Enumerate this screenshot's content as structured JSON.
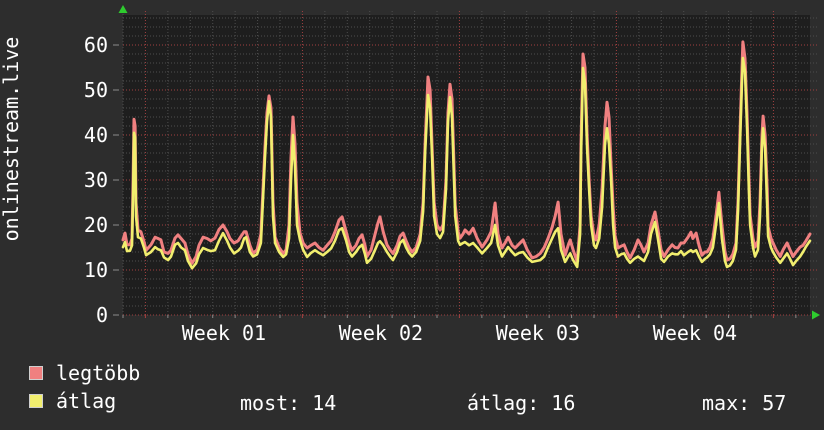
{
  "vertical_title": "onlinestream.live",
  "colors": {
    "page_bg": "#2d2d2d",
    "plot_bg": "#1e1e1e",
    "grid_minor": "#4d4d4d",
    "grid_major_red": "#a14040",
    "axis_tick": "#8a8a8a",
    "axis_arrow_green": "#2ecc2e",
    "text": "#ffffff",
    "legtobb_line": "#f08080",
    "atlag_line": "#f1ee6e",
    "swatch_border": "#cfcfcf"
  },
  "legend": {
    "items": [
      {
        "label": "legtöbb",
        "color": "#f08080"
      },
      {
        "label": "átlag",
        "color": "#f1ee6e"
      }
    ]
  },
  "stats": {
    "most": {
      "label": "most:",
      "value": 14,
      "text": "most: 14"
    },
    "atlag": {
      "label": "átlag:",
      "value": 16,
      "text": "átlag: 16"
    },
    "max": {
      "label": "max:",
      "value": 57,
      "text": "max: 57"
    }
  },
  "chart_data": {
    "type": "line",
    "title": "onlinestream.live",
    "xlabel": "",
    "ylabel": "",
    "grid": true,
    "legend_position": "bottom-left",
    "x_unit": "days",
    "x_range_days": [
      0,
      30.63
    ],
    "ylim": [
      0,
      66.667
    ],
    "y_ticks": [
      0,
      10,
      20,
      30,
      40,
      50,
      60
    ],
    "y_minor_step": 2,
    "x_day_grid_step": 1,
    "x_week_gridlines_days": [
      1,
      8,
      15,
      22,
      29
    ],
    "x_tick_labels": [
      {
        "label": "Week 01",
        "day": 4.5
      },
      {
        "label": "Week 02",
        "day": 11.5
      },
      {
        "label": "Week 03",
        "day": 18.5
      },
      {
        "label": "Week 04",
        "day": 25.5
      }
    ],
    "series_names": [
      "legtöbb",
      "átlag"
    ],
    "points_format": [
      "day",
      "legtöbb",
      "átlag"
    ],
    "points": [
      [
        0.0,
        16.7,
        15.1
      ],
      [
        0.09,
        18.2,
        16.2
      ],
      [
        0.18,
        15.6,
        14.2
      ],
      [
        0.31,
        15.6,
        14.3
      ],
      [
        0.4,
        17.0,
        15.5
      ],
      [
        0.45,
        30.0,
        27.0
      ],
      [
        0.49,
        43.5,
        40.5
      ],
      [
        0.54,
        42.0,
        39.5
      ],
      [
        0.58,
        25.0,
        22.0
      ],
      [
        0.67,
        18.9,
        17.3
      ],
      [
        0.8,
        18.5,
        17.0
      ],
      [
        0.94,
        16.2,
        14.9
      ],
      [
        1.03,
        14.4,
        13.3
      ],
      [
        1.25,
        15.6,
        14.0
      ],
      [
        1.43,
        17.3,
        15.1
      ],
      [
        1.56,
        17.0,
        14.6
      ],
      [
        1.69,
        16.7,
        14.4
      ],
      [
        1.83,
        14.0,
        12.8
      ],
      [
        2.01,
        13.7,
        12.2
      ],
      [
        2.14,
        14.4,
        13.0
      ],
      [
        2.32,
        17.1,
        15.6
      ],
      [
        2.45,
        17.8,
        16.0
      ],
      [
        2.59,
        17.0,
        15.0
      ],
      [
        2.76,
        16.0,
        14.4
      ],
      [
        2.9,
        13.5,
        12.0
      ],
      [
        3.08,
        11.5,
        10.4
      ],
      [
        3.26,
        13.0,
        11.5
      ],
      [
        3.39,
        15.5,
        13.5
      ],
      [
        3.57,
        17.3,
        14.9
      ],
      [
        3.75,
        17.0,
        14.5
      ],
      [
        3.92,
        16.5,
        14.2
      ],
      [
        4.1,
        17.1,
        14.4
      ],
      [
        4.28,
        19.0,
        16.5
      ],
      [
        4.46,
        20.0,
        18.2
      ],
      [
        4.64,
        18.5,
        16.5
      ],
      [
        4.77,
        17.0,
        15.0
      ],
      [
        4.95,
        16.0,
        13.7
      ],
      [
        5.13,
        16.5,
        14.3
      ],
      [
        5.26,
        17.5,
        15.0
      ],
      [
        5.4,
        18.5,
        17.0
      ],
      [
        5.49,
        18.5,
        17.3
      ],
      [
        5.66,
        15.5,
        14.0
      ],
      [
        5.8,
        13.7,
        13.0
      ],
      [
        5.98,
        14.5,
        13.5
      ],
      [
        6.15,
        18.0,
        16.0
      ],
      [
        6.33,
        37.3,
        35.1
      ],
      [
        6.42,
        45.0,
        43.0
      ],
      [
        6.51,
        48.7,
        47.5
      ],
      [
        6.6,
        46.0,
        44.0
      ],
      [
        6.69,
        25.0,
        22.0
      ],
      [
        6.78,
        17.3,
        16.0
      ],
      [
        6.96,
        15.0,
        14.0
      ],
      [
        7.14,
        13.7,
        12.9
      ],
      [
        7.27,
        14.5,
        13.5
      ],
      [
        7.4,
        20.0,
        17.0
      ],
      [
        7.49,
        35.0,
        30.0
      ],
      [
        7.58,
        44.0,
        40.0
      ],
      [
        7.67,
        38.0,
        33.0
      ],
      [
        7.76,
        25.0,
        20.0
      ],
      [
        7.89,
        18.2,
        16.7
      ],
      [
        8.03,
        16.0,
        14.5
      ],
      [
        8.21,
        14.9,
        12.9
      ],
      [
        8.38,
        15.5,
        13.8
      ],
      [
        8.56,
        16.0,
        14.4
      ],
      [
        8.74,
        15.0,
        13.8
      ],
      [
        8.92,
        14.4,
        13.3
      ],
      [
        9.1,
        15.5,
        14.0
      ],
      [
        9.28,
        16.5,
        14.8
      ],
      [
        9.45,
        18.5,
        16.5
      ],
      [
        9.63,
        21.1,
        18.9
      ],
      [
        9.77,
        21.8,
        19.3
      ],
      [
        9.95,
        18.5,
        16.5
      ],
      [
        10.08,
        16.0,
        14.0
      ],
      [
        10.21,
        14.4,
        13.0
      ],
      [
        10.39,
        15.5,
        14.0
      ],
      [
        10.52,
        17.0,
        15.0
      ],
      [
        10.66,
        17.8,
        15.6
      ],
      [
        10.79,
        15.5,
        13.5
      ],
      [
        10.88,
        13.0,
        11.6
      ],
      [
        11.06,
        14.5,
        12.5
      ],
      [
        11.24,
        18.0,
        14.5
      ],
      [
        11.37,
        20.5,
        16.0
      ],
      [
        11.46,
        21.8,
        16.4
      ],
      [
        11.6,
        18.5,
        15.5
      ],
      [
        11.77,
        15.6,
        14.0
      ],
      [
        11.91,
        14.5,
        13.0
      ],
      [
        12.04,
        13.7,
        12.2
      ],
      [
        12.22,
        15.5,
        14.0
      ],
      [
        12.35,
        17.5,
        16.0
      ],
      [
        12.49,
        18.2,
        16.7
      ],
      [
        12.62,
        16.5,
        15.0
      ],
      [
        12.75,
        15.0,
        13.8
      ],
      [
        12.89,
        14.0,
        13.0
      ],
      [
        13.07,
        15.0,
        14.0
      ],
      [
        13.25,
        18.0,
        16.5
      ],
      [
        13.38,
        25.0,
        23.0
      ],
      [
        13.47,
        38.0,
        36.0
      ],
      [
        13.6,
        52.9,
        48.9
      ],
      [
        13.69,
        50.0,
        46.0
      ],
      [
        13.78,
        37.3,
        35.0
      ],
      [
        13.87,
        25.0,
        22.0
      ],
      [
        14.0,
        20.0,
        18.0
      ],
      [
        14.14,
        18.9,
        17.1
      ],
      [
        14.27,
        20.0,
        18.5
      ],
      [
        14.4,
        30.0,
        28.0
      ],
      [
        14.49,
        45.0,
        43.0
      ],
      [
        14.58,
        51.3,
        48.4
      ],
      [
        14.67,
        48.0,
        44.0
      ],
      [
        14.81,
        24.4,
        22.0
      ],
      [
        14.94,
        18.5,
        16.5
      ],
      [
        15.03,
        17.1,
        15.6
      ],
      [
        15.16,
        18.0,
        16.0
      ],
      [
        15.25,
        18.9,
        16.2
      ],
      [
        15.43,
        18.0,
        15.5
      ],
      [
        15.61,
        19.3,
        16.0
      ],
      [
        15.79,
        17.0,
        15.0
      ],
      [
        16.01,
        15.1,
        13.7
      ],
      [
        16.23,
        16.7,
        14.9
      ],
      [
        16.41,
        18.5,
        16.0
      ],
      [
        16.59,
        24.9,
        20.0
      ],
      [
        16.72,
        18.0,
        15.5
      ],
      [
        16.9,
        14.9,
        13.0
      ],
      [
        17.03,
        16.0,
        14.0
      ],
      [
        17.17,
        17.3,
        15.1
      ],
      [
        17.35,
        15.5,
        14.0
      ],
      [
        17.48,
        14.9,
        13.3
      ],
      [
        17.66,
        15.8,
        13.8
      ],
      [
        17.84,
        16.7,
        14.0
      ],
      [
        18.02,
        14.5,
        12.8
      ],
      [
        18.24,
        12.7,
        11.8
      ],
      [
        18.42,
        13.0,
        12.0
      ],
      [
        18.6,
        13.7,
        12.2
      ],
      [
        18.78,
        15.0,
        13.0
      ],
      [
        18.95,
        17.0,
        15.0
      ],
      [
        19.13,
        19.5,
        17.0
      ],
      [
        19.27,
        22.0,
        18.5
      ],
      [
        19.4,
        25.1,
        19.3
      ],
      [
        19.53,
        18.0,
        14.5
      ],
      [
        19.71,
        13.3,
        11.8
      ],
      [
        19.85,
        15.5,
        13.0
      ],
      [
        19.94,
        16.7,
        13.7
      ],
      [
        20.07,
        14.5,
        12.2
      ],
      [
        20.25,
        11.8,
        10.7
      ],
      [
        20.38,
        20.0,
        18.0
      ],
      [
        20.42,
        38.0,
        35.0
      ],
      [
        20.51,
        58.0,
        54.9
      ],
      [
        20.6,
        55.0,
        51.6
      ],
      [
        20.69,
        40.0,
        37.0
      ],
      [
        20.78,
        30.0,
        28.0
      ],
      [
        20.87,
        22.0,
        20.0
      ],
      [
        21.0,
        17.5,
        15.5
      ],
      [
        21.09,
        16.7,
        14.9
      ],
      [
        21.23,
        20.0,
        17.0
      ],
      [
        21.36,
        28.0,
        24.0
      ],
      [
        21.49,
        42.0,
        38.0
      ],
      [
        21.58,
        47.3,
        41.5
      ],
      [
        21.67,
        44.0,
        38.0
      ],
      [
        21.76,
        33.0,
        30.0
      ],
      [
        21.85,
        24.0,
        20.0
      ],
      [
        21.94,
        17.5,
        15.0
      ],
      [
        22.07,
        14.9,
        13.0
      ],
      [
        22.21,
        15.3,
        13.5
      ],
      [
        22.34,
        15.6,
        13.7
      ],
      [
        22.47,
        14.0,
        12.5
      ],
      [
        22.61,
        12.7,
        11.6
      ],
      [
        22.79,
        14.5,
        12.5
      ],
      [
        22.96,
        16.7,
        13.0
      ],
      [
        23.1,
        15.5,
        12.5
      ],
      [
        23.23,
        14.0,
        12.0
      ],
      [
        23.41,
        16.0,
        14.0
      ],
      [
        23.54,
        20.0,
        18.0
      ],
      [
        23.72,
        22.9,
        20.7
      ],
      [
        23.85,
        19.0,
        17.0
      ],
      [
        23.99,
        14.5,
        12.5
      ],
      [
        24.12,
        13.0,
        11.8
      ],
      [
        24.3,
        14.5,
        13.0
      ],
      [
        24.48,
        15.6,
        13.7
      ],
      [
        24.61,
        15.0,
        13.5
      ],
      [
        24.74,
        14.9,
        13.5
      ],
      [
        24.88,
        16.0,
        14.2
      ],
      [
        25.01,
        16.0,
        13.3
      ],
      [
        25.19,
        17.3,
        14.0
      ],
      [
        25.32,
        18.4,
        14.4
      ],
      [
        25.41,
        17.0,
        14.0
      ],
      [
        25.55,
        18.2,
        14.4
      ],
      [
        25.68,
        15.5,
        13.0
      ],
      [
        25.81,
        13.3,
        11.8
      ],
      [
        25.95,
        14.0,
        12.5
      ],
      [
        26.04,
        14.0,
        12.8
      ],
      [
        26.17,
        15.0,
        13.5
      ],
      [
        26.3,
        17.0,
        15.0
      ],
      [
        26.44,
        22.0,
        20.0
      ],
      [
        26.57,
        27.3,
        24.9
      ],
      [
        26.7,
        20.0,
        17.0
      ],
      [
        26.84,
        14.0,
        12.0
      ],
      [
        26.93,
        12.2,
        10.7
      ],
      [
        27.06,
        12.5,
        11.0
      ],
      [
        27.19,
        13.5,
        12.0
      ],
      [
        27.33,
        16.0,
        14.5
      ],
      [
        27.42,
        25.0,
        23.0
      ],
      [
        27.51,
        40.5,
        38.0
      ],
      [
        27.6,
        55.0,
        52.0
      ],
      [
        27.64,
        60.7,
        57.1
      ],
      [
        27.73,
        57.0,
        54.0
      ],
      [
        27.82,
        45.0,
        42.0
      ],
      [
        27.91,
        30.0,
        27.0
      ],
      [
        27.96,
        22.2,
        20.0
      ],
      [
        28.09,
        17.0,
        15.0
      ],
      [
        28.18,
        15.1,
        13.0
      ],
      [
        28.31,
        16.5,
        14.5
      ],
      [
        28.4,
        25.0,
        22.0
      ],
      [
        28.49,
        40.0,
        38.0
      ],
      [
        28.54,
        44.2,
        41.5
      ],
      [
        28.63,
        40.0,
        37.0
      ],
      [
        28.72,
        28.0,
        24.0
      ],
      [
        28.76,
        19.6,
        17.5
      ],
      [
        28.89,
        17.0,
        15.0
      ],
      [
        28.98,
        16.0,
        14.0
      ],
      [
        29.12,
        14.5,
        12.8
      ],
      [
        29.3,
        13.0,
        11.6
      ],
      [
        29.43,
        14.5,
        12.5
      ],
      [
        29.61,
        16.0,
        13.7
      ],
      [
        29.74,
        14.5,
        12.5
      ],
      [
        29.87,
        13.0,
        11.1
      ],
      [
        30.01,
        14.0,
        12.0
      ],
      [
        30.19,
        15.1,
        13.0
      ],
      [
        30.32,
        15.5,
        14.0
      ],
      [
        30.45,
        16.5,
        15.2
      ],
      [
        30.63,
        18.0,
        16.5
      ]
    ]
  }
}
